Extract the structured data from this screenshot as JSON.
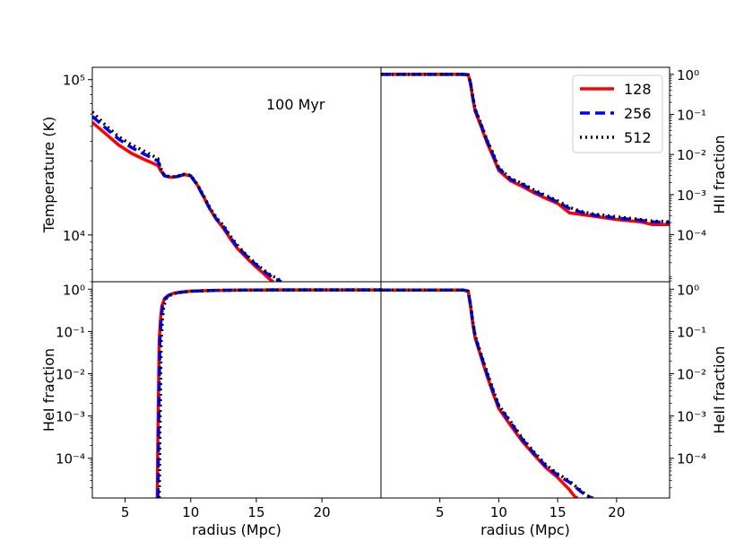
{
  "chart_data": [
    {
      "panel": "top-left",
      "type": "line",
      "ylabel": "Temperature (K)",
      "xlabel": "",
      "yscale": "log",
      "xlim": [
        2.5,
        24.5
      ],
      "ylim": [
        5000,
        120000
      ],
      "y_ticks": [
        {
          "value": 10000,
          "label": "10⁴"
        },
        {
          "value": 100000,
          "label": "10⁵"
        }
      ],
      "x_ticks": [],
      "annotation": "100 Myr",
      "series": [
        {
          "name": "128",
          "x": [
            2.5,
            3.5,
            4.5,
            5.5,
            6.5,
            7.5,
            7.7,
            8.0,
            8.5,
            9.0,
            9.5,
            10.0,
            10.5,
            11.0,
            11.5,
            12.0,
            12.5,
            13.0,
            13.5,
            14.0,
            14.5,
            15.0,
            15.5,
            16.0,
            16.3
          ],
          "y": [
            53000,
            45000,
            38000,
            33500,
            30500,
            28000,
            26000,
            24000,
            23500,
            23800,
            24500,
            24000,
            21000,
            17500,
            14500,
            12500,
            11000,
            9500,
            8300,
            7500,
            6800,
            6200,
            5700,
            5200,
            5000
          ]
        },
        {
          "name": "256",
          "x": [
            2.5,
            3.5,
            4.5,
            5.5,
            6.5,
            7.5,
            7.7,
            8.0,
            8.5,
            9.0,
            9.5,
            10.0,
            10.5,
            11.0,
            11.5,
            12.0,
            12.5,
            13.0,
            13.5,
            14.0,
            14.5,
            15.0,
            15.5,
            16.0,
            16.5,
            16.9
          ],
          "y": [
            58000,
            49000,
            41500,
            36500,
            33000,
            30000,
            26500,
            24000,
            23500,
            23800,
            24500,
            24000,
            21000,
            17500,
            14500,
            12500,
            11300,
            9700,
            8500,
            7700,
            7000,
            6400,
            5900,
            5500,
            5200,
            5000
          ]
        },
        {
          "name": "512",
          "x": [
            2.5,
            3.5,
            4.5,
            5.5,
            6.5,
            7.5,
            7.7,
            8.0,
            8.5,
            9.0,
            9.5,
            10.0,
            10.5,
            11.0,
            11.5,
            12.0,
            12.5,
            13.0,
            13.5,
            14.0,
            14.5,
            15.0,
            15.5,
            16.0,
            16.5,
            17.0
          ],
          "y": [
            62000,
            51000,
            43000,
            38000,
            34500,
            31000,
            27000,
            24200,
            23600,
            23900,
            24600,
            24200,
            21200,
            17800,
            14800,
            12800,
            11500,
            9900,
            8700,
            7800,
            7100,
            6500,
            6000,
            5600,
            5300,
            5000
          ]
        }
      ]
    },
    {
      "panel": "top-right",
      "type": "line",
      "ylabel": "HII fraction",
      "xlabel": "",
      "yscale": "log",
      "xlim": [
        0,
        24.5
      ],
      "ylim": [
        6.7e-06,
        1.5
      ],
      "y_ticks": [
        {
          "value": 0.0001,
          "label": "10⁻⁴"
        },
        {
          "value": 0.001,
          "label": "10⁻³"
        },
        {
          "value": 0.01,
          "label": "10⁻²"
        },
        {
          "value": 0.1,
          "label": "10⁻¹"
        },
        {
          "value": 1,
          "label": "10⁰"
        }
      ],
      "x_ticks": [],
      "series": [
        {
          "name": "128",
          "x": [
            0,
            3.5,
            7.0,
            7.4,
            7.6,
            7.8,
            8.0,
            8.5,
            9.0,
            9.5,
            10.0,
            11.0,
            12.0,
            13.0,
            14.0,
            15.0,
            16.0,
            17.0,
            18.0,
            20.0,
            22.0,
            23.0,
            24.5
          ],
          "y": [
            1,
            1,
            1,
            0.98,
            0.6,
            0.25,
            0.12,
            0.05,
            0.02,
            0.009,
            0.004,
            0.0022,
            0.0016,
            0.0011,
            0.0008,
            0.0006,
            0.00035,
            0.00032,
            0.00029,
            0.00024,
            0.00021,
            0.00018,
            0.00018
          ]
        },
        {
          "name": "256",
          "x": [
            0,
            3.5,
            7.0,
            7.4,
            7.6,
            7.8,
            8.0,
            8.5,
            9.0,
            9.5,
            10.0,
            11.0,
            12.0,
            13.0,
            14.0,
            15.0,
            16.0,
            17.0,
            18.0,
            20.0,
            22.0,
            23.0,
            24.5
          ],
          "y": [
            1,
            1,
            1,
            0.98,
            0.6,
            0.26,
            0.13,
            0.055,
            0.022,
            0.01,
            0.0045,
            0.0024,
            0.0018,
            0.0012,
            0.0009,
            0.00065,
            0.00045,
            0.00036,
            0.00031,
            0.00026,
            0.00023,
            0.00021,
            0.0002
          ]
        },
        {
          "name": "512",
          "x": [
            0,
            3.5,
            7.0,
            7.4,
            7.6,
            7.8,
            8.0,
            8.5,
            9.0,
            9.5,
            10.0,
            11.0,
            12.0,
            13.0,
            14.0,
            15.0,
            16.0,
            17.0,
            18.0,
            20.0,
            22.0,
            23.0,
            24.5
          ],
          "y": [
            1,
            1,
            1,
            0.98,
            0.62,
            0.27,
            0.135,
            0.058,
            0.023,
            0.011,
            0.0047,
            0.0025,
            0.0019,
            0.0013,
            0.00095,
            0.0007,
            0.00048,
            0.00038,
            0.00033,
            0.00028,
            0.00024,
            0.00022,
            0.00021
          ]
        }
      ]
    },
    {
      "panel": "bottom-left",
      "type": "line",
      "ylabel": "HeI fraction",
      "xlabel": "radius (Mpc)",
      "yscale": "log",
      "xlim": [
        2.5,
        24.5
      ],
      "ylim": [
        1.15e-05,
        1.5
      ],
      "y_ticks": [
        {
          "value": 0.0001,
          "label": "10⁻⁴"
        },
        {
          "value": 0.001,
          "label": "10⁻³"
        },
        {
          "value": 0.01,
          "label": "10⁻²"
        },
        {
          "value": 0.1,
          "label": "10⁻¹"
        },
        {
          "value": 1,
          "label": "10⁰"
        }
      ],
      "x_ticks": [
        {
          "value": 5,
          "label": "5"
        },
        {
          "value": 10,
          "label": "10"
        },
        {
          "value": 15,
          "label": "15"
        },
        {
          "value": 20,
          "label": "20"
        }
      ],
      "series": [
        {
          "name": "128",
          "x": [
            7.45,
            7.5,
            7.6,
            7.7,
            7.8,
            8.0,
            8.3,
            8.7,
            9.2,
            10.0,
            11.0,
            12.0,
            14.0,
            17.0,
            20.0,
            24.5
          ],
          "y": [
            1.15e-05,
            0.0004,
            0.06,
            0.2,
            0.4,
            0.6,
            0.72,
            0.8,
            0.85,
            0.9,
            0.92,
            0.94,
            0.95,
            0.96,
            0.96,
            0.96
          ]
        },
        {
          "name": "256",
          "x": [
            7.5,
            7.55,
            7.65,
            7.75,
            7.85,
            8.05,
            8.35,
            8.75,
            9.25,
            10.0,
            11.0,
            12.0,
            14.0,
            17.0,
            20.0,
            24.5
          ],
          "y": [
            1.15e-05,
            0.0004,
            0.06,
            0.2,
            0.4,
            0.6,
            0.72,
            0.8,
            0.85,
            0.9,
            0.92,
            0.94,
            0.95,
            0.96,
            0.96,
            0.96
          ]
        },
        {
          "name": "512",
          "x": [
            7.6,
            7.65,
            7.75,
            7.85,
            7.95,
            8.15,
            8.45,
            8.85,
            9.35,
            10.1,
            11.0,
            12.0,
            14.0,
            17.0,
            20.0,
            24.5
          ],
          "y": [
            1.15e-05,
            0.0004,
            0.06,
            0.2,
            0.4,
            0.6,
            0.72,
            0.8,
            0.85,
            0.9,
            0.92,
            0.94,
            0.95,
            0.96,
            0.96,
            0.96
          ]
        }
      ]
    },
    {
      "panel": "bottom-right",
      "type": "line",
      "ylabel": "HeII fraction",
      "xlabel": "radius (Mpc)",
      "yscale": "log",
      "xlim": [
        0,
        24.5
      ],
      "ylim": [
        1.15e-05,
        1.5
      ],
      "y_ticks": [
        {
          "value": 0.0001,
          "label": "10⁻⁴"
        },
        {
          "value": 0.001,
          "label": "10⁻³"
        },
        {
          "value": 0.01,
          "label": "10⁻²"
        },
        {
          "value": 0.1,
          "label": "10⁻¹"
        },
        {
          "value": 1,
          "label": "10⁰"
        }
      ],
      "x_ticks": [
        {
          "value": 5,
          "label": "5"
        },
        {
          "value": 10,
          "label": "10"
        },
        {
          "value": 15,
          "label": "15"
        },
        {
          "value": 20,
          "label": "20"
        }
      ],
      "series": [
        {
          "name": "128",
          "x": [
            0,
            3.5,
            7.0,
            7.4,
            7.6,
            7.8,
            8.0,
            8.5,
            9.0,
            9.5,
            10.0,
            11.0,
            12.0,
            13.0,
            14.0,
            15.0,
            15.5,
            16.0,
            16.3,
            16.5,
            16.7
          ],
          "y": [
            0.95,
            0.95,
            0.95,
            0.9,
            0.4,
            0.15,
            0.07,
            0.025,
            0.009,
            0.0035,
            0.0015,
            0.0006,
            0.00025,
            0.00012,
            6e-05,
            3.5e-05,
            2.5e-05,
            1.8e-05,
            1.4e-05,
            1.2e-05,
            1.15e-05
          ]
        },
        {
          "name": "256",
          "x": [
            0,
            3.5,
            7.0,
            7.4,
            7.6,
            7.8,
            8.0,
            8.5,
            9.0,
            9.5,
            10.0,
            11.0,
            12.0,
            13.0,
            14.0,
            15.0,
            16.0,
            16.5,
            17.0,
            17.5,
            17.9
          ],
          "y": [
            0.95,
            0.95,
            0.95,
            0.9,
            0.42,
            0.16,
            0.075,
            0.027,
            0.01,
            0.004,
            0.0017,
            0.0007,
            0.00028,
            0.00013,
            6.5e-05,
            4e-05,
            2.7e-05,
            2.1e-05,
            1.6e-05,
            1.3e-05,
            1.15e-05
          ]
        },
        {
          "name": "512",
          "x": [
            0,
            3.5,
            7.0,
            7.4,
            7.6,
            7.8,
            8.0,
            8.5,
            9.0,
            9.5,
            10.0,
            11.0,
            12.0,
            13.0,
            14.0,
            15.0,
            16.0,
            16.5,
            17.0,
            17.5,
            18.0
          ],
          "y": [
            0.95,
            0.95,
            0.95,
            0.9,
            0.44,
            0.17,
            0.08,
            0.029,
            0.011,
            0.0043,
            0.0018,
            0.00075,
            0.0003,
            0.00014,
            7e-05,
            4.3e-05,
            2.9e-05,
            2.2e-05,
            1.7e-05,
            1.3e-05,
            1.15e-05
          ]
        }
      ]
    }
  ],
  "legend": {
    "placement": "top-right",
    "entries": [
      {
        "label": "128",
        "color": "#ff0000",
        "style": "solid"
      },
      {
        "label": "256",
        "color": "#0000ff",
        "style": "dashed"
      },
      {
        "label": "512",
        "color": "#000000",
        "style": "dotted"
      }
    ]
  }
}
